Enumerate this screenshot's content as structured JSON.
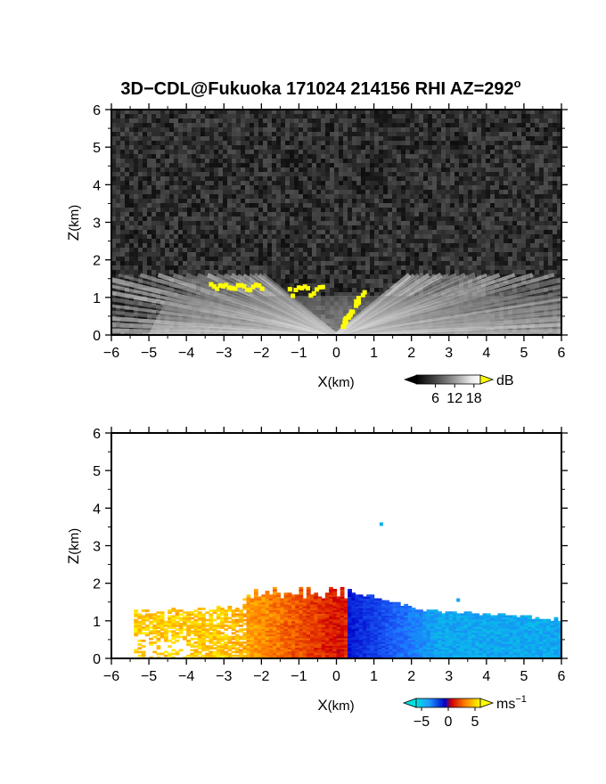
{
  "figure": {
    "title": "3D−CDL@Fukuoka 171024 214156 RHI AZ=292",
    "title_superscript": "o"
  },
  "chart_data": [
    {
      "type": "heatmap",
      "panel": "reflectivity",
      "xlabel_main": "X",
      "xlabel_unit": "(km)",
      "ylabel_main": "Z",
      "ylabel_unit": "(km)",
      "xlim": [
        -6,
        6
      ],
      "ylim": [
        0,
        6
      ],
      "x_ticks": [
        "−6",
        "−5",
        "−4",
        "−3",
        "−2",
        "−1",
        "0",
        "1",
        "2",
        "3",
        "4",
        "5",
        "6"
      ],
      "y_ticks": [
        "0",
        "1",
        "2",
        "3",
        "4",
        "5",
        "6"
      ],
      "colorbar": {
        "unit": "dB",
        "ticks": [
          "6",
          "12",
          "18"
        ],
        "range": [
          0,
          20
        ],
        "colors": [
          "#000000",
          "#404040",
          "#808080",
          "#c0c0c0",
          "#ffffff",
          "#ffff00"
        ]
      },
      "features": {
        "background": "noise",
        "echo_top_km": 1.5,
        "strong_echo_color": "#ffff00"
      }
    },
    {
      "type": "heatmap",
      "panel": "doppler velocity",
      "xlabel_main": "X",
      "xlabel_unit": "(km)",
      "ylabel_main": "Z",
      "ylabel_unit": "(km)",
      "xlim": [
        -6,
        6
      ],
      "ylim": [
        0,
        6
      ],
      "x_ticks": [
        "−6",
        "−5",
        "−4",
        "−3",
        "−2",
        "−1",
        "0",
        "1",
        "2",
        "3",
        "4",
        "5",
        "6"
      ],
      "y_ticks": [
        "0",
        "1",
        "2",
        "3",
        "4",
        "5",
        "6"
      ],
      "colorbar": {
        "unit_main": "ms",
        "unit_sup": "−1",
        "ticks": [
          "−5",
          "0",
          "5"
        ],
        "range": [
          -6,
          6
        ],
        "colors": [
          "#00e0e0",
          "#2070ff",
          "#0000c8",
          "#d00000",
          "#ff8000",
          "#ffff00"
        ]
      },
      "features": {
        "negative_side": "x > 0.2 km",
        "positive_side": "x < 0.2 km",
        "echo_top_km": 1.9
      }
    }
  ]
}
